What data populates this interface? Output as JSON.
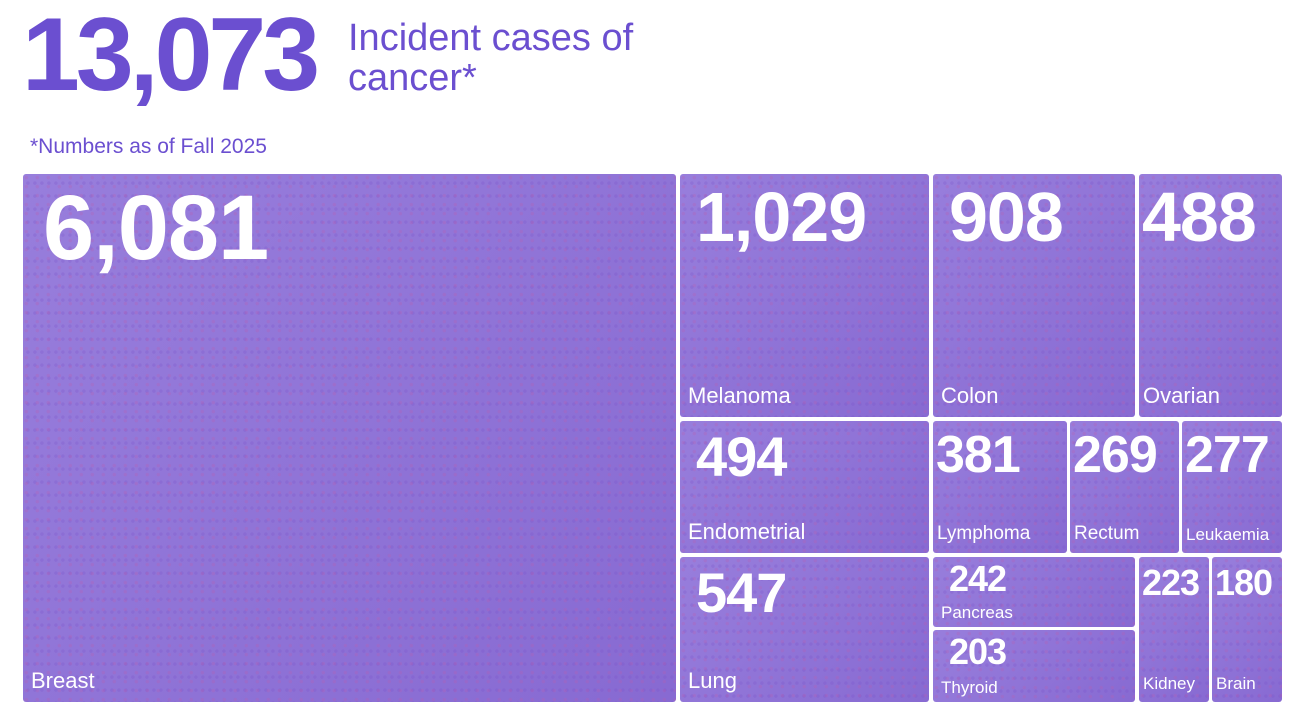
{
  "chart_data": {
    "type": "treemap",
    "total": 13073,
    "total_label": "13,073",
    "title": "Incident cases of cancer*",
    "subtitle": "*Numbers as of Fall 2025",
    "categories": [
      "Breast",
      "Melanoma",
      "Colon",
      "Ovarian",
      "Endometrial",
      "Lymphoma",
      "Rectum",
      "Leukaemia",
      "Lung",
      "Pancreas",
      "Thyroid",
      "Kidney",
      "Brain"
    ],
    "values": [
      6081,
      1029,
      908,
      488,
      494,
      381,
      269,
      277,
      547,
      242,
      203,
      223,
      180
    ],
    "value_labels": [
      "6,081",
      "1,029",
      "908",
      "488",
      "494",
      "381",
      "269",
      "277",
      "547",
      "242",
      "203",
      "223",
      "180"
    ],
    "color": "#8f73d9"
  }
}
